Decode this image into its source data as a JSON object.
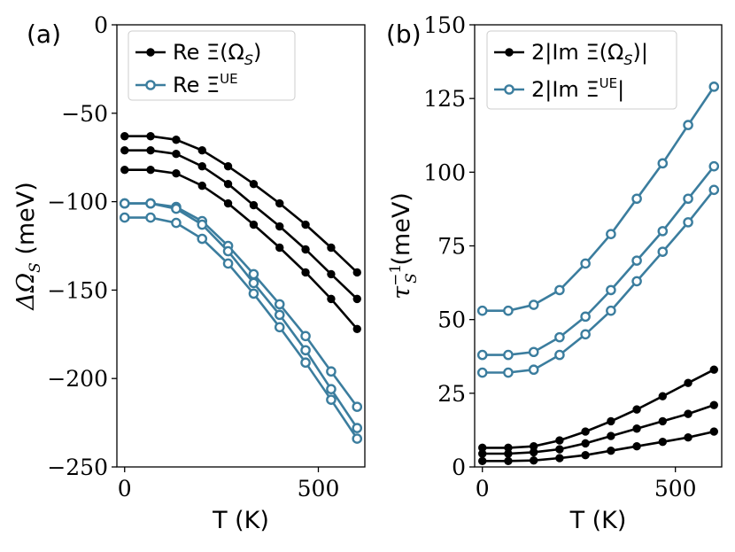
{
  "colors": {
    "black_series": "#000000",
    "blue_series": "#3b7d9e"
  },
  "chart_data": [
    {
      "type": "line",
      "panel_label": "(a)",
      "xlabel": "T (K)",
      "ylabel": "ΔΩ_S (meV)",
      "ylabel_main": "ΔΩ",
      "ylabel_sub": "S",
      "ylabel_unit": " (meV)",
      "xlim": [
        -20,
        620
      ],
      "ylim": [
        -250,
        0
      ],
      "xticks": [
        0,
        500
      ],
      "xtick_labels": [
        "0",
        "500"
      ],
      "yticks": [
        0,
        -50,
        -100,
        -150,
        -200,
        -250
      ],
      "ytick_labels": [
        "0",
        "−50",
        "−100",
        "−150",
        "−200",
        "−250"
      ],
      "legend_position": "top-right",
      "x": [
        0,
        67,
        133,
        200,
        267,
        333,
        400,
        467,
        533,
        600
      ],
      "series": [
        {
          "name": "Re Ξ(Ω_S)",
          "legend_main": "Re Ξ(Ω",
          "legend_sub": "S",
          "legend_end": ")",
          "legend_sup": "",
          "style": "black",
          "marker": "filled",
          "values": [
            -63,
            -63,
            -65,
            -71,
            -80,
            -90,
            -101,
            -113,
            -126,
            -140
          ]
        },
        {
          "name": "",
          "style": "black",
          "marker": "filled",
          "values": [
            -71,
            -71,
            -73,
            -80,
            -90,
            -102,
            -114,
            -127,
            -141,
            -155
          ]
        },
        {
          "name": "",
          "style": "black",
          "marker": "filled",
          "values": [
            -82,
            -82,
            -84,
            -91,
            -101,
            -113,
            -126,
            -140,
            -155,
            -172
          ]
        },
        {
          "name": "Re Ξ^UE",
          "legend_main": "Re Ξ",
          "legend_sub": "",
          "legend_end": "",
          "legend_sup": "UE",
          "style": "blue",
          "marker": "hollow",
          "values": [
            -101,
            -101,
            -103,
            -111,
            -125,
            -141,
            -158,
            -176,
            -196,
            -216
          ]
        },
        {
          "name": "",
          "style": "blue",
          "marker": "hollow",
          "values": [
            -101,
            -101,
            -104,
            -113,
            -128,
            -146,
            -164,
            -184,
            -206,
            -228
          ]
        },
        {
          "name": "",
          "style": "blue",
          "marker": "hollow",
          "values": [
            -109,
            -109,
            -112,
            -121,
            -135,
            -152,
            -171,
            -191,
            -212,
            -234
          ]
        }
      ]
    },
    {
      "type": "line",
      "panel_label": "(b)",
      "xlabel": "T (K)",
      "ylabel": "τ_S^−1 (meV)",
      "ylabel_main": "τ",
      "ylabel_sub": "S",
      "ylabel_sup": "−1",
      "ylabel_unit": " (meV)",
      "xlim": [
        -20,
        620
      ],
      "ylim": [
        0,
        150
      ],
      "xticks": [
        0,
        500
      ],
      "xtick_labels": [
        "0",
        "500"
      ],
      "yticks": [
        0,
        25,
        50,
        75,
        100,
        125,
        150
      ],
      "ytick_labels": [
        "0",
        "25",
        "50",
        "75",
        "100",
        "125",
        "150"
      ],
      "legend_position": "top-left",
      "x": [
        0,
        67,
        133,
        200,
        267,
        333,
        400,
        467,
        533,
        600
      ],
      "series": [
        {
          "name": "2|Im Ξ(Ω_S)|",
          "legend_main": "2|Im Ξ(Ω",
          "legend_sub": "S",
          "legend_end": ")|",
          "legend_sup": "",
          "style": "black",
          "marker": "filled",
          "values": [
            6.5,
            6.5,
            7,
            9,
            12,
            15.5,
            19.5,
            24,
            28.5,
            33
          ]
        },
        {
          "name": "",
          "style": "black",
          "marker": "filled",
          "values": [
            4.5,
            4.5,
            5,
            6,
            8,
            10.5,
            13,
            15.5,
            18,
            21
          ]
        },
        {
          "name": "",
          "style": "black",
          "marker": "filled",
          "values": [
            2,
            2,
            2.2,
            3,
            4,
            5.5,
            7,
            8.5,
            10,
            12
          ]
        },
        {
          "name": "2|Im Ξ^UE|",
          "legend_main": "2|Im Ξ",
          "legend_sub": "",
          "legend_end": "|",
          "legend_sup": "UE",
          "style": "blue",
          "marker": "hollow",
          "values": [
            53,
            53,
            55,
            60,
            69,
            79,
            91,
            103,
            116,
            129
          ]
        },
        {
          "name": "",
          "style": "blue",
          "marker": "hollow",
          "values": [
            38,
            38,
            39,
            44,
            51,
            60,
            70,
            80,
            91,
            102
          ]
        },
        {
          "name": "",
          "style": "blue",
          "marker": "hollow",
          "values": [
            32,
            32,
            33,
            38,
            45,
            53,
            63,
            73,
            83,
            94
          ]
        }
      ]
    }
  ]
}
